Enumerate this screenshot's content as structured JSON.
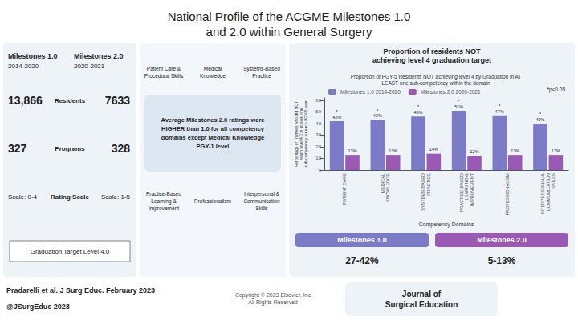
{
  "chart_data": {
    "type": "bar",
    "title": "National Profile of the ACGME Milestones 1.0\nand 2.0 within General Surgery",
    "subtitle": "Proportion of PGY-5 Residents NOT achieving level 4 by Graduation in AT\nLEAST one sub-competency within the domain",
    "categories": [
      "PATIENT CARE",
      "MEDICAL\nKNOWLEDGE",
      "SYSTEMS-BASED\nPRACTICE",
      "PRACTICE-BASED\nLEARNING &\nIMPROVEMENT",
      "PROFESSIONALISM",
      "INTERPERSONAL &\nCOMMUNICATION\nSKILLS"
    ],
    "series": [
      {
        "name": "Milestones 1.0 2014-2020",
        "color": "#7B7BC8",
        "values": [
          42,
          43,
          46,
          51,
          47,
          40
        ],
        "value_labels": [
          "*\n42%",
          "*\n43%",
          "*\n46%",
          "*\n51%",
          "*\n47%",
          "*\n40%"
        ]
      },
      {
        "name": "Milestones 2.0 2020-2021",
        "color": "#9B59B6",
        "values": [
          13,
          13,
          14,
          12,
          13,
          13
        ],
        "value_labels": [
          "13%",
          "13%",
          "14%",
          "12%",
          "13%",
          "13%"
        ]
      }
    ],
    "xlabel": "Competency Domains",
    "ylabel": "Percentage of Trainees who did NOT\nreach level 4.0 in at least one\nsub-competency for each PGY-5 year",
    "ylim": [
      0,
      62
    ],
    "yticks": [
      0,
      10,
      20,
      30,
      40,
      50,
      60
    ],
    "grid": false,
    "legend": "upper left",
    "data_labels": true,
    "annotations": [
      "Milestones 1.0",
      "2014-2020",
      "Milestones 2.0",
      "2020-2021",
      "13,866",
      "Residents",
      "7633",
      "327",
      "Programs",
      "328",
      "Scale: 0-4",
      "Rating Scale",
      "Scale: 1-5",
      "Graduation Target Level 4.0",
      "Patient Care &\nProcedural Skills",
      "Medical\nKnowledge",
      "Systems-Based\nPractice",
      "Average Milestones 2.0 ratings were\nHIGHER than 1.0 for all competency\ndomains except Medical Knowledge\nPGY-1 level",
      "Practice-Based\nLearning &\nImprovement",
      "Professionalism",
      "Interpersonal &\nCommunication\nSkills",
      "Proportion of residents NOT\nachieving level 4 graduation target",
      "*p<0.05",
      "Milestones 1.0",
      "27-42%",
      "Milestones 2.0",
      "5-13%",
      "Pradarelli et al. J Surg Educ. February 2023",
      "@JSurgEduc 2023",
      "Copyright © 2023 Elsevier, Inc\nAll Rights Reserved",
      "Journal of\nSurgical Education"
    ]
  }
}
